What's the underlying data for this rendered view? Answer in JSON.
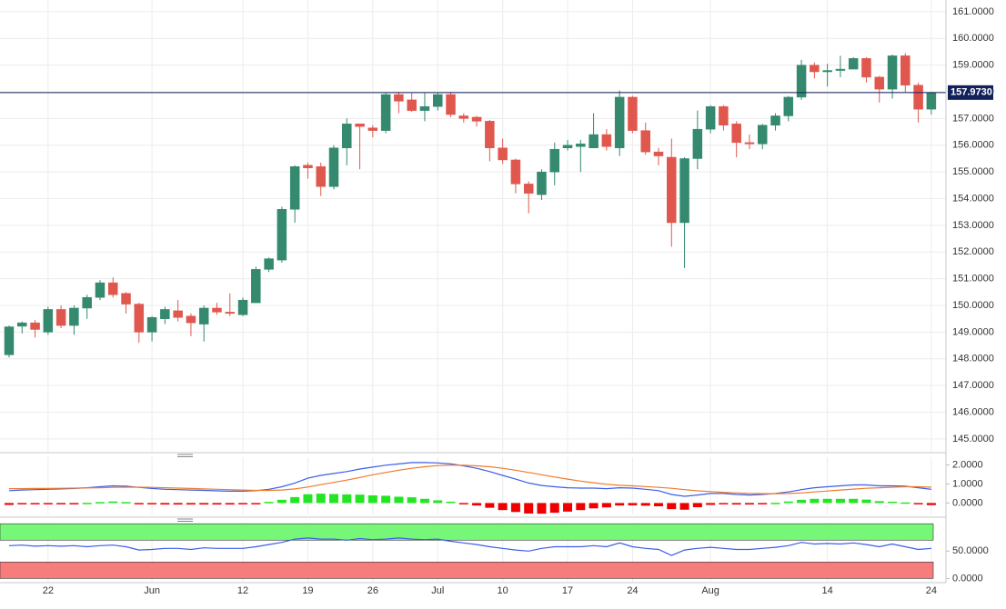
{
  "chart_data": [
    {
      "type": "candlestick",
      "categories": [
        null,
        null,
        null,
        "22",
        null,
        null,
        null,
        null,
        null,
        null,
        null,
        "Jun",
        null,
        null,
        null,
        null,
        null,
        null,
        "12",
        null,
        null,
        null,
        null,
        "19",
        null,
        null,
        null,
        null,
        "26",
        null,
        null,
        null,
        null,
        "Jul",
        null,
        null,
        null,
        null,
        "10",
        null,
        null,
        null,
        null,
        "17",
        null,
        null,
        null,
        null,
        "24",
        null,
        null,
        null,
        null,
        null,
        "Aug",
        null,
        null,
        null,
        null,
        null,
        null,
        null,
        null,
        "14",
        null,
        null,
        null,
        null,
        null,
        null,
        null,
        "24"
      ],
      "open": [
        148.15,
        149.22,
        149.35,
        149.0,
        149.85,
        149.25,
        149.9,
        150.3,
        150.85,
        150.45,
        150.05,
        149.0,
        149.5,
        149.8,
        149.6,
        149.3,
        149.9,
        149.75,
        149.65,
        150.1,
        151.35,
        151.7,
        153.6,
        155.25,
        155.2,
        154.45,
        155.9,
        156.8,
        156.65,
        156.55,
        157.9,
        157.7,
        157.3,
        157.45,
        157.9,
        157.1,
        157.05,
        156.9,
        155.9,
        155.45,
        154.55,
        154.15,
        155.0,
        155.9,
        155.95,
        155.9,
        156.4,
        155.9,
        157.8,
        156.55,
        155.75,
        155.55,
        153.1,
        155.5,
        156.6,
        157.45,
        156.8,
        156.1,
        156.05,
        156.75,
        157.1,
        157.8,
        159.0,
        158.75,
        158.8,
        158.85,
        159.25,
        158.55,
        158.1,
        159.35,
        158.25,
        157.35
      ],
      "high": [
        149.25,
        149.4,
        149.45,
        149.95,
        150.0,
        150.0,
        150.4,
        150.95,
        151.05,
        150.5,
        150.1,
        149.6,
        149.95,
        150.2,
        149.7,
        150.0,
        150.1,
        150.45,
        150.3,
        151.45,
        151.8,
        153.7,
        155.25,
        155.35,
        155.35,
        156.0,
        157.0,
        156.8,
        156.75,
        157.95,
        158.0,
        157.95,
        157.95,
        157.95,
        158.0,
        157.2,
        157.1,
        156.95,
        156.25,
        155.5,
        154.65,
        155.1,
        156.1,
        156.2,
        156.2,
        157.2,
        156.6,
        158.05,
        157.85,
        156.85,
        155.9,
        156.25,
        155.55,
        157.3,
        157.5,
        157.5,
        156.9,
        156.4,
        156.8,
        157.2,
        157.85,
        159.2,
        159.1,
        159.05,
        159.35,
        159.3,
        159.3,
        158.6,
        159.4,
        159.45,
        158.35,
        158.0
      ],
      "low": [
        148.05,
        148.95,
        148.8,
        148.9,
        149.15,
        148.9,
        149.5,
        150.2,
        150.3,
        149.7,
        148.6,
        148.65,
        149.3,
        149.4,
        148.85,
        148.65,
        149.65,
        149.6,
        149.6,
        150.1,
        151.25,
        151.6,
        153.1,
        154.75,
        154.1,
        154.35,
        155.25,
        155.1,
        156.3,
        156.45,
        157.2,
        157.25,
        156.9,
        157.3,
        157.05,
        156.85,
        156.7,
        155.4,
        155.3,
        154.2,
        153.45,
        153.95,
        154.5,
        155.8,
        155.0,
        155.9,
        155.8,
        155.6,
        156.45,
        155.65,
        155.25,
        152.2,
        151.4,
        155.1,
        156.45,
        156.55,
        155.55,
        155.85,
        155.85,
        156.55,
        156.9,
        157.7,
        158.5,
        158.2,
        158.55,
        158.85,
        158.35,
        157.6,
        157.75,
        158.0,
        156.85,
        157.15
      ],
      "close": [
        149.2,
        149.35,
        149.1,
        149.85,
        149.25,
        149.9,
        150.3,
        150.85,
        150.4,
        150.05,
        149.0,
        149.55,
        149.85,
        149.55,
        149.35,
        149.9,
        149.75,
        149.7,
        150.2,
        151.35,
        151.75,
        153.6,
        155.2,
        155.15,
        154.45,
        155.9,
        156.8,
        156.7,
        156.55,
        157.9,
        157.65,
        157.3,
        157.45,
        157.9,
        157.15,
        157.0,
        156.9,
        155.9,
        155.45,
        154.55,
        154.2,
        155.0,
        155.85,
        156.0,
        156.05,
        156.4,
        155.95,
        157.8,
        156.55,
        155.75,
        155.6,
        153.1,
        155.5,
        156.6,
        157.45,
        156.75,
        156.1,
        156.05,
        156.75,
        157.1,
        157.8,
        159.0,
        158.75,
        158.8,
        158.85,
        159.25,
        158.55,
        158.1,
        159.35,
        158.25,
        157.35,
        157.97
      ],
      "up_color": "#34896f",
      "down_color": "#e0574e",
      "ylim": [
        144.52,
        161.44
      ],
      "yticks": [
        {
          "value": 161,
          "label": "161.0000"
        },
        {
          "value": 160,
          "label": "160.0000"
        },
        {
          "value": 159,
          "label": "159.0000"
        },
        {
          "value": 158,
          "label": "158.0000"
        },
        {
          "value": 157,
          "label": "157.0000"
        },
        {
          "value": 156,
          "label": "156.0000"
        },
        {
          "value": 155,
          "label": "155.0000"
        },
        {
          "value": 154,
          "label": "154.0000"
        },
        {
          "value": 153,
          "label": "153.0000"
        },
        {
          "value": 152,
          "label": "152.0000"
        },
        {
          "value": 151,
          "label": "151.0000"
        },
        {
          "value": 150,
          "label": "150.0000"
        },
        {
          "value": 149,
          "label": "149.0000"
        },
        {
          "value": 148,
          "label": "148.0000"
        },
        {
          "value": 147,
          "label": "147.0000"
        },
        {
          "value": 146,
          "label": "146.0000"
        },
        {
          "value": 145,
          "label": "145.0000"
        }
      ],
      "last_value": {
        "value": 157.973,
        "label": "157.9730",
        "color": "#13215a"
      },
      "grid": true
    },
    {
      "type": "line",
      "series": [
        {
          "style": "line",
          "color": "#3b5ee8",
          "values": [
            0.65,
            0.68,
            0.7,
            0.72,
            0.74,
            0.76,
            0.8,
            0.85,
            0.9,
            0.88,
            0.82,
            0.76,
            0.72,
            0.7,
            0.68,
            0.66,
            0.64,
            0.62,
            0.62,
            0.65,
            0.72,
            0.85,
            1.05,
            1.3,
            1.45,
            1.55,
            1.65,
            1.78,
            1.88,
            1.98,
            2.05,
            2.12,
            2.12,
            2.1,
            2.05,
            1.95,
            1.82,
            1.65,
            1.45,
            1.25,
            1.05,
            0.92,
            0.85,
            0.8,
            0.78,
            0.78,
            0.75,
            0.8,
            0.78,
            0.72,
            0.65,
            0.45,
            0.35,
            0.42,
            0.5,
            0.5,
            0.45,
            0.42,
            0.45,
            0.5,
            0.58,
            0.7,
            0.8,
            0.85,
            0.9,
            0.95,
            0.95,
            0.9,
            0.9,
            0.88,
            0.8,
            0.72
          ]
        },
        {
          "style": "line",
          "color": "#f07a2a",
          "values": [
            0.75,
            0.75,
            0.76,
            0.76,
            0.77,
            0.78,
            0.79,
            0.8,
            0.82,
            0.83,
            0.83,
            0.82,
            0.8,
            0.78,
            0.76,
            0.74,
            0.72,
            0.7,
            0.68,
            0.66,
            0.66,
            0.68,
            0.74,
            0.84,
            0.96,
            1.08,
            1.2,
            1.34,
            1.48,
            1.6,
            1.72,
            1.82,
            1.9,
            1.96,
            1.98,
            1.98,
            1.95,
            1.9,
            1.82,
            1.72,
            1.6,
            1.48,
            1.36,
            1.25,
            1.15,
            1.06,
            0.98,
            0.93,
            0.9,
            0.86,
            0.82,
            0.77,
            0.7,
            0.64,
            0.6,
            0.56,
            0.53,
            0.5,
            0.49,
            0.49,
            0.5,
            0.53,
            0.58,
            0.63,
            0.68,
            0.73,
            0.77,
            0.8,
            0.83,
            0.85,
            0.85,
            0.83
          ]
        },
        {
          "style": "bar",
          "up_color": "#22e622",
          "down_color": "#ee0000",
          "values": [
            -0.1,
            -0.07,
            -0.06,
            -0.04,
            -0.03,
            -0.02,
            0.01,
            0.05,
            0.08,
            0.05,
            -0.01,
            -0.06,
            -0.08,
            -0.08,
            -0.08,
            -0.08,
            -0.08,
            -0.08,
            -0.06,
            -0.01,
            0.06,
            0.17,
            0.31,
            0.46,
            0.49,
            0.47,
            0.45,
            0.44,
            0.4,
            0.38,
            0.33,
            0.3,
            0.22,
            0.14,
            0.07,
            -0.03,
            -0.13,
            -0.25,
            -0.37,
            -0.47,
            -0.55,
            -0.56,
            -0.51,
            -0.45,
            -0.37,
            -0.28,
            -0.23,
            -0.13,
            -0.12,
            -0.14,
            -0.17,
            -0.32,
            -0.35,
            -0.22,
            -0.1,
            -0.06,
            -0.08,
            -0.08,
            -0.04,
            0.01,
            0.08,
            0.17,
            0.22,
            0.22,
            0.22,
            0.22,
            0.18,
            0.1,
            0.07,
            0.03,
            -0.05,
            -0.11
          ]
        }
      ],
      "ylim": [
        -0.6,
        2.4
      ],
      "yticks": [
        {
          "value": 2,
          "label": "2.0000"
        },
        {
          "value": 1,
          "label": "1.0000"
        },
        {
          "value": 0,
          "label": "0.0000"
        }
      ]
    },
    {
      "type": "line",
      "series": [
        {
          "style": "line",
          "color": "#3b5ee8",
          "values": [
            60,
            61,
            59,
            60,
            59,
            60,
            58,
            60,
            61,
            58,
            52,
            53,
            55,
            55,
            53,
            56,
            55,
            55,
            55,
            58,
            62,
            66,
            72,
            74,
            72,
            72,
            70,
            73,
            71,
            72,
            74,
            72,
            71,
            72,
            68,
            65,
            62,
            58,
            55,
            52,
            50,
            55,
            58,
            58,
            58,
            60,
            58,
            65,
            58,
            55,
            53,
            42,
            52,
            55,
            57,
            55,
            53,
            53,
            55,
            57,
            60,
            66,
            63,
            64,
            63,
            65,
            62,
            58,
            63,
            58,
            53,
            55
          ]
        }
      ],
      "bands": [
        {
          "from": 70,
          "to": 100,
          "color": "#77f777"
        },
        {
          "from": 0,
          "to": 30,
          "color": "#f77c7c"
        }
      ],
      "ylim": [
        -6,
        102
      ],
      "yticks": [
        {
          "value": 50,
          "label": "50.0000"
        },
        {
          "value": 0,
          "label": "0.0000"
        }
      ]
    }
  ]
}
